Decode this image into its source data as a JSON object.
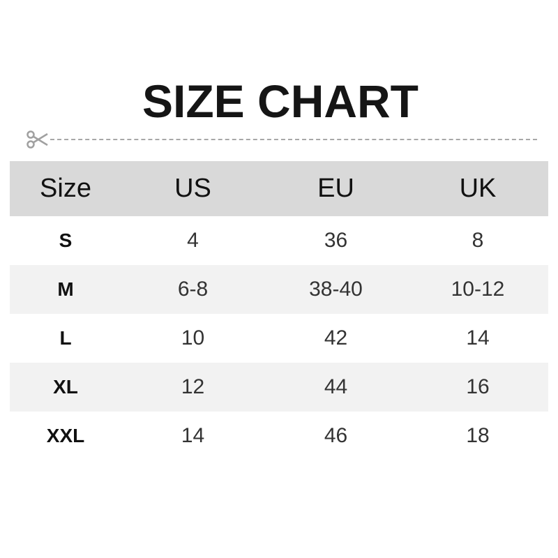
{
  "title": "SIZE CHART",
  "colors": {
    "header_bg": "#d9d9d9",
    "alt_row_bg": "#f2f2f2",
    "dash_line": "#a8a8a8"
  },
  "icons": {
    "cut_line": "scissors-icon"
  },
  "table": {
    "headers": [
      "Size",
      "US",
      "EU",
      "UK"
    ],
    "rows": [
      [
        "S",
        "4",
        "36",
        "8"
      ],
      [
        "M",
        "6-8",
        "38-40",
        "10-12"
      ],
      [
        "L",
        "10",
        "42",
        "14"
      ],
      [
        "XL",
        "12",
        "44",
        "16"
      ],
      [
        "XXL",
        "14",
        "46",
        "18"
      ]
    ]
  }
}
